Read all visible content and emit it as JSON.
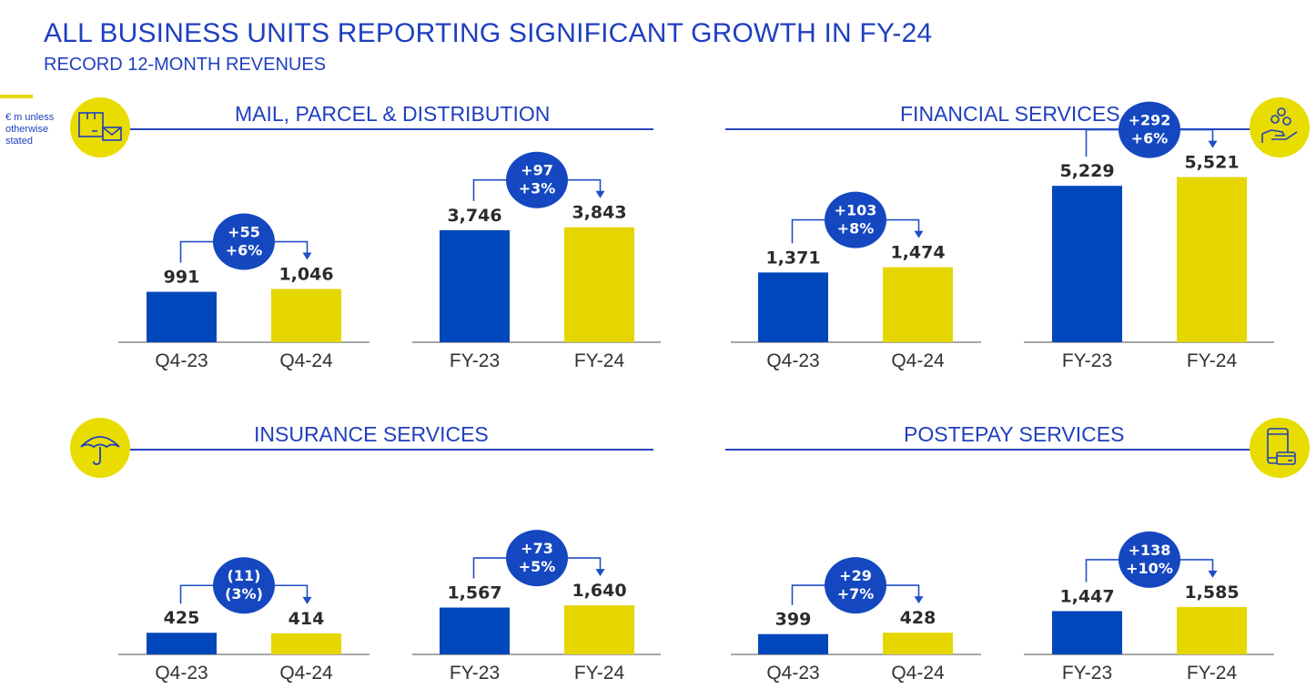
{
  "header": {
    "title": "ALL BUSINESS UNITS REPORTING SIGNIFICANT GROWTH IN FY-24",
    "subtitle": "RECORD 12-MONTH REVENUES",
    "unit_note": "€ m unless otherwise stated"
  },
  "colors": {
    "prior_period": "#0047bb",
    "current_period": "#e6d600",
    "accent": "#1f3fbf"
  },
  "sections": [
    {
      "title": "MAIL, PARCEL & DISTRIBUTION",
      "icon": "parcel-mail-icon"
    },
    {
      "title": "FINANCIAL SERVICES",
      "icon": "hand-coins-icon"
    },
    {
      "title": "INSURANCE SERVICES",
      "icon": "umbrella-icon"
    },
    {
      "title": "POSTEPAY SERVICES",
      "icon": "phone-card-icon"
    }
  ],
  "chart_data": [
    {
      "type": "bar",
      "section": "MAIL, PARCEL & DISTRIBUTION",
      "categories": [
        "Q4-23",
        "Q4-24"
      ],
      "values": [
        991,
        1046
      ],
      "value_labels": [
        "991",
        "1,046"
      ],
      "delta": [
        "+55",
        "+6%"
      ]
    },
    {
      "type": "bar",
      "section": "MAIL, PARCEL & DISTRIBUTION",
      "categories": [
        "FY-23",
        "FY-24"
      ],
      "values": [
        3746,
        3843
      ],
      "value_labels": [
        "3,746",
        "3,843"
      ],
      "delta": [
        "+97",
        "+3%"
      ]
    },
    {
      "type": "bar",
      "section": "FINANCIAL SERVICES",
      "categories": [
        "Q4-23",
        "Q4-24"
      ],
      "values": [
        1371,
        1474
      ],
      "value_labels": [
        "1,371",
        "1,474"
      ],
      "delta": [
        "+103",
        "+8%"
      ]
    },
    {
      "type": "bar",
      "section": "FINANCIAL SERVICES",
      "categories": [
        "FY-23",
        "FY-24"
      ],
      "values": [
        5229,
        5521
      ],
      "value_labels": [
        "5,229",
        "5,521"
      ],
      "delta": [
        "+292",
        "+6%"
      ]
    },
    {
      "type": "bar",
      "section": "INSURANCE SERVICES",
      "categories": [
        "Q4-23",
        "Q4-24"
      ],
      "values": [
        425,
        414
      ],
      "value_labels": [
        "425",
        "414"
      ],
      "delta": [
        "(11)",
        "(3%)"
      ]
    },
    {
      "type": "bar",
      "section": "INSURANCE SERVICES",
      "categories": [
        "FY-23",
        "FY-24"
      ],
      "values": [
        1567,
        1640
      ],
      "value_labels": [
        "1,567",
        "1,640"
      ],
      "delta": [
        "+73",
        "+5%"
      ]
    },
    {
      "type": "bar",
      "section": "POSTEPAY SERVICES",
      "categories": [
        "Q4-23",
        "Q4-24"
      ],
      "values": [
        399,
        428
      ],
      "value_labels": [
        "399",
        "428"
      ],
      "delta": [
        "+29",
        "+7%"
      ]
    },
    {
      "type": "bar",
      "section": "POSTEPAY SERVICES",
      "categories": [
        "FY-23",
        "FY-24"
      ],
      "values": [
        1447,
        1585
      ],
      "value_labels": [
        "1,447",
        "1,585"
      ],
      "delta": [
        "+138",
        "+10%"
      ]
    }
  ]
}
